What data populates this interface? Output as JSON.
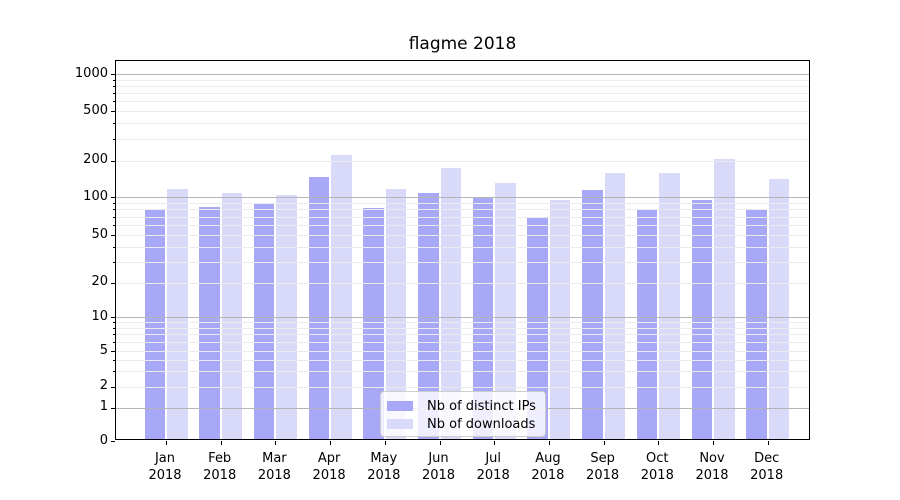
{
  "title": "flagme 2018",
  "chart_data": {
    "type": "bar",
    "title": "flagme 2018",
    "categories": [
      "Jan",
      "Feb",
      "Mar",
      "Apr",
      "May",
      "Jun",
      "Jul",
      "Aug",
      "Sep",
      "Oct",
      "Nov",
      "Dec"
    ],
    "year_label": "2018",
    "series": [
      {
        "name": "Nb of distinct IPs",
        "color": "#a8a8f8",
        "values": [
          78,
          81,
          85,
          140,
          79,
          104,
          96,
          66,
          111,
          78,
          92,
          76
        ]
      },
      {
        "name": "Nb of downloads",
        "color": "#d9d9fa",
        "values": [
          113,
          104,
          100,
          213,
          113,
          166,
          126,
          92,
          153,
          152,
          199,
          136
        ]
      }
    ],
    "y_scale": "symlog",
    "y_ticks": [
      0,
      1,
      2,
      5,
      10,
      20,
      50,
      100,
      200,
      500,
      1000
    ],
    "ylim": [
      0,
      1300
    ],
    "grid": "both",
    "grid_major_color": "#b5b5b5",
    "grid_minor_color": "#ebebeb",
    "legend_position": "lower center"
  }
}
